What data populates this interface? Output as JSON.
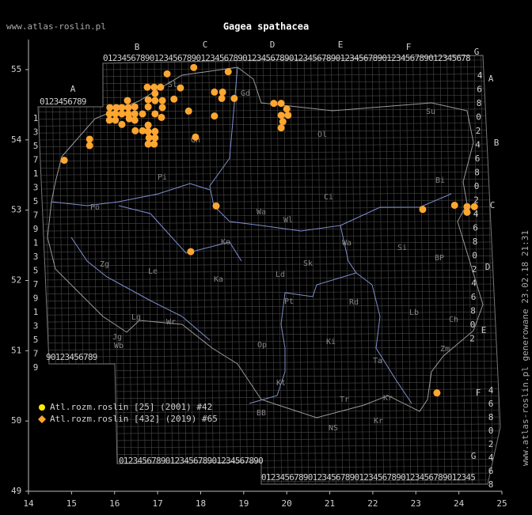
{
  "header": {
    "site": "www.atlas-roslin.pl",
    "title": "Gagea spathacea"
  },
  "footer": {
    "generated": "www.atlas-roslin.pl generowane 23.02.18 21:31"
  },
  "legend": [
    {
      "label": "Atl.rozm.roslin [25] (2001) #42",
      "color": "#ffee00"
    },
    {
      "label": "Atl.rozm.roslin [432] (2019) #65",
      "color": "#ffa630"
    }
  ],
  "axes": {
    "xlim": [
      14,
      25
    ],
    "ylim": [
      49,
      55.4
    ],
    "xticks": [
      14,
      15,
      16,
      17,
      18,
      19,
      20,
      21,
      22,
      23,
      24,
      25
    ],
    "yticks": [
      49,
      50,
      51,
      52,
      53,
      54,
      55
    ]
  },
  "grid_letters": {
    "top": [
      "B",
      "C",
      "D",
      "E",
      "F",
      "G"
    ],
    "west": "A",
    "right": [
      "A",
      "B",
      "C",
      "D",
      "E",
      "F",
      "G"
    ]
  },
  "digit_rows": {
    "top": "0123456789012345678901234567890123456789012345678901234567890123456789012345678",
    "west_top": "0123456789",
    "west_bottom": "90123456789",
    "south": "0123456789012345678901234567890",
    "south_east": "0123456789012345678901234567890123456789012345"
  },
  "digit_cols": {
    "left": [
      "1",
      "3",
      "5",
      "7",
      "1",
      "3",
      "5",
      "7",
      "9",
      "1",
      "3",
      "5",
      "7",
      "9",
      "1",
      "3",
      "5",
      "7",
      "9"
    ],
    "right": [
      "4",
      "6",
      "8",
      "0",
      "2",
      "4",
      "6",
      "8",
      "0",
      "2",
      "4",
      "6",
      "8",
      "0",
      "2",
      "4",
      "6",
      "8",
      "0",
      "2"
    ],
    "south_right": [
      "4",
      "6",
      "8",
      "0",
      "2",
      "4",
      "6",
      "8"
    ]
  },
  "regions": [
    "Gd",
    "Sl",
    "Su",
    "Ol",
    "Bi",
    "Gn",
    "Pi",
    "Ci",
    "Po",
    "Wa",
    "Wl",
    "Ko",
    "Wa",
    "Si",
    "BP",
    "Zg",
    "Le",
    "Ld",
    "Sk",
    "Ka",
    "Pt",
    "Rd",
    "Lb",
    "Ch",
    "Lg",
    "Wr",
    "Jg",
    "Wb",
    "Op",
    "Ki",
    "Zm",
    "Ta",
    "Kt",
    "Kr",
    "Tr",
    "BB",
    "NS",
    "Kr"
  ],
  "points": {
    "lon": [
      17.22,
      17.84,
      18.64,
      16.76,
      16.92,
      17.07,
      16.94,
      17.53,
      17.38,
      18.32,
      18.51,
      18.78,
      18.49,
      16.3,
      16.78,
      16.94,
      17.11,
      15.89,
      16.04,
      16.17,
      16.32,
      16.47,
      16.78,
      17.11,
      17.72,
      19.7,
      19.87,
      20.0,
      15.88,
      16.02,
      16.17,
      16.32,
      16.47,
      16.65,
      16.94,
      17.09,
      19.87,
      20.03,
      15.88,
      16.02,
      16.17,
      16.34,
      16.47,
      18.32,
      19.91,
      16.78,
      16.65,
      16.48,
      16.94,
      16.78,
      19.87,
      16.8,
      16.94,
      16.78,
      16.92,
      15.42,
      15.42,
      17.88,
      14.83,
      18.36,
      23.16,
      23.9,
      24.19,
      24.19,
      24.36,
      17.77,
      23.49
    ],
    "lat": [
      54.94,
      55.03,
      54.97,
      54.75,
      54.75,
      54.75,
      54.66,
      54.74,
      54.58,
      54.68,
      54.68,
      54.59,
      54.59,
      54.56,
      54.57,
      54.56,
      54.56,
      54.46,
      54.46,
      54.46,
      54.46,
      54.47,
      54.47,
      54.46,
      54.41,
      54.52,
      54.52,
      54.44,
      54.37,
      54.37,
      54.37,
      54.37,
      54.37,
      54.37,
      54.37,
      54.32,
      54.35,
      54.35,
      54.28,
      54.28,
      54.22,
      54.3,
      54.28,
      54.34,
      54.26,
      54.21,
      54.13,
      54.13,
      54.12,
      54.12,
      54.17,
      54.03,
      54.03,
      53.94,
      53.94,
      54.01,
      53.92,
      54.04,
      53.71,
      53.06,
      53.01,
      53.07,
      53.05,
      52.97,
      53.05,
      52.41,
      50.4
    ],
    "color": "#ffa630"
  }
}
